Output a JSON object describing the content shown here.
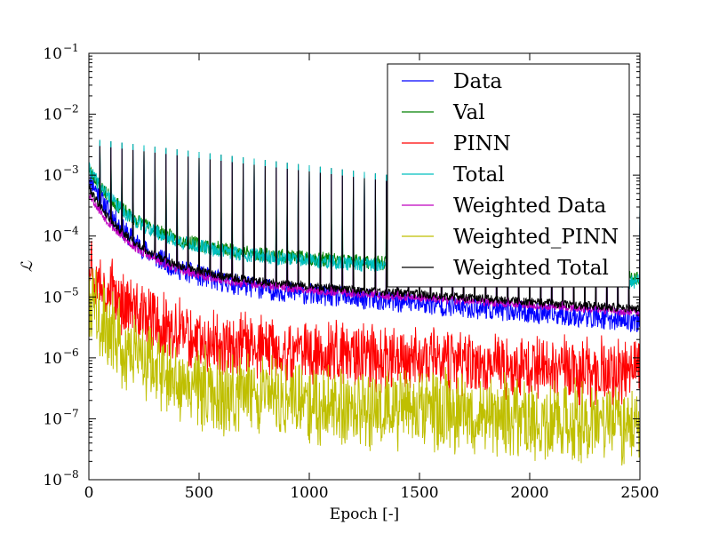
{
  "chart_data": {
    "type": "line",
    "title": "",
    "xlabel": "Epoch [-]",
    "ylabel": "ℒ",
    "xlim": [
      0,
      2500
    ],
    "ylim_exponents": [
      -8,
      -1
    ],
    "yscale": "log",
    "x_ticks": [
      0,
      500,
      1000,
      1500,
      2000,
      2500
    ],
    "y_ticks": [
      {
        "base": "10",
        "exp": "−1"
      },
      {
        "base": "10",
        "exp": "−2"
      },
      {
        "base": "10",
        "exp": "−3"
      },
      {
        "base": "10",
        "exp": "−4"
      },
      {
        "base": "10",
        "exp": "−5"
      },
      {
        "base": "10",
        "exp": "−6"
      },
      {
        "base": "10",
        "exp": "−7"
      },
      {
        "base": "10",
        "exp": "−8"
      }
    ],
    "grid": false,
    "legend_position": "top-right",
    "series": [
      {
        "name": "Data",
        "color": "#0000ff",
        "start": -3.0,
        "end": -5.4,
        "noise": 0.18,
        "seed": 11
      },
      {
        "name": "Val",
        "color": "#008000",
        "start": -2.9,
        "end": -4.7,
        "noise": 0.12,
        "seed": 23
      },
      {
        "name": "PINN",
        "color": "#ff0000",
        "start": -4.2,
        "end": -6.1,
        "noise": 0.45,
        "seed": 37
      },
      {
        "name": "Total",
        "color": "#00bfbf",
        "start": -2.9,
        "end": -4.75,
        "noise": 0.12,
        "seed": 41
      },
      {
        "name": "Weighted Data",
        "color": "#bf00bf",
        "start": -3.3,
        "end": -5.25,
        "noise": 0.07,
        "seed": 53
      },
      {
        "name": "Weighted_PINN",
        "color": "#bfbf00",
        "start": -4.8,
        "end": -6.9,
        "noise": 0.55,
        "seed": 67
      },
      {
        "name": "Weighted Total",
        "color": "#000000",
        "start": -3.2,
        "end": -5.2,
        "noise": 0.07,
        "seed": 79
      }
    ],
    "spike_epochs_every": 50,
    "spike_peak_start": -2.4,
    "spike_peak_end": -3.5
  }
}
